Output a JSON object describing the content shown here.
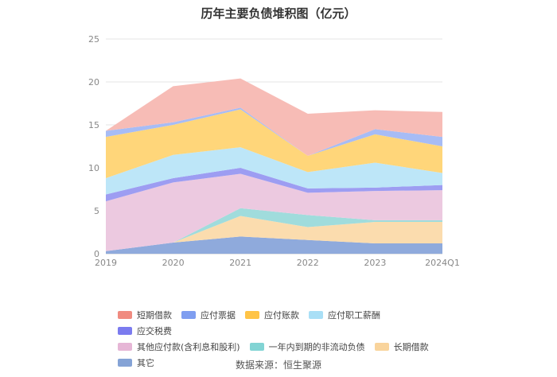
{
  "chart_data": {
    "type": "area",
    "title": "历年主要负债堆积图（亿元）",
    "x": [
      "2019",
      "2020",
      "2021",
      "2022",
      "2023",
      "2024Q1"
    ],
    "ylim": [
      0,
      25
    ],
    "yticks": [
      "0",
      "5",
      "10",
      "15",
      "20",
      "25"
    ],
    "grid": true,
    "legend_position": "bottom",
    "stacked": true,
    "series": [
      {
        "name": "其它",
        "color": "#8faadc",
        "values": [
          0.3,
          1.3,
          2.0,
          1.6,
          1.2,
          1.2
        ]
      },
      {
        "name": "长期借款",
        "color": "#fbdcae",
        "values": [
          0.0,
          0.0,
          2.4,
          1.5,
          2.5,
          2.5
        ]
      },
      {
        "name": "一年内到期的非流动负债",
        "color": "#a0dcdc",
        "values": [
          0.0,
          0.0,
          0.9,
          1.4,
          0.2,
          0.2
        ]
      },
      {
        "name": "其他应付款(含利息和股利)",
        "color": "#ecc9e0",
        "values": [
          5.8,
          7.0,
          4.0,
          2.6,
          3.4,
          3.5
        ]
      },
      {
        "name": "应交税费",
        "color": "#9d9df2",
        "values": [
          0.8,
          0.5,
          0.7,
          0.5,
          0.4,
          0.6
        ]
      },
      {
        "name": "应付职工薪酬",
        "color": "#bde6f8",
        "values": [
          1.9,
          2.7,
          2.4,
          1.9,
          2.9,
          1.4
        ]
      },
      {
        "name": "应付账款",
        "color": "#ffd67a",
        "values": [
          4.8,
          3.5,
          4.4,
          1.9,
          3.3,
          3.1
        ]
      },
      {
        "name": "应付票据",
        "color": "#a7bcf5",
        "values": [
          0.7,
          0.3,
          0.2,
          0.0,
          0.6,
          1.1
        ]
      },
      {
        "name": "短期借款",
        "color": "#f7bcb6",
        "values": [
          0.0,
          4.2,
          3.4,
          4.9,
          2.2,
          2.9
        ]
      }
    ],
    "legend_order": [
      "短期借款",
      "应付票据",
      "应付账款",
      "应付职工薪酬",
      "应交税费",
      "其他应付款(含利息和股利)",
      "一年内到期的非流动负债",
      "长期借款",
      "其它"
    ],
    "legend_swatch_colors": {
      "短期借款": "#f08b80",
      "应付票据": "#7f9ef0",
      "应付账款": "#ffc447",
      "应付职工薪酬": "#a9dff6",
      "应交税费": "#7b7bef",
      "其他应付款(含利息和股利)": "#e6b6d6",
      "一年内到期的非流动负债": "#82d4d4",
      "长期借款": "#f9d49c",
      "其它": "#85a3d6"
    }
  },
  "source_text": "数据来源：恒生聚源"
}
